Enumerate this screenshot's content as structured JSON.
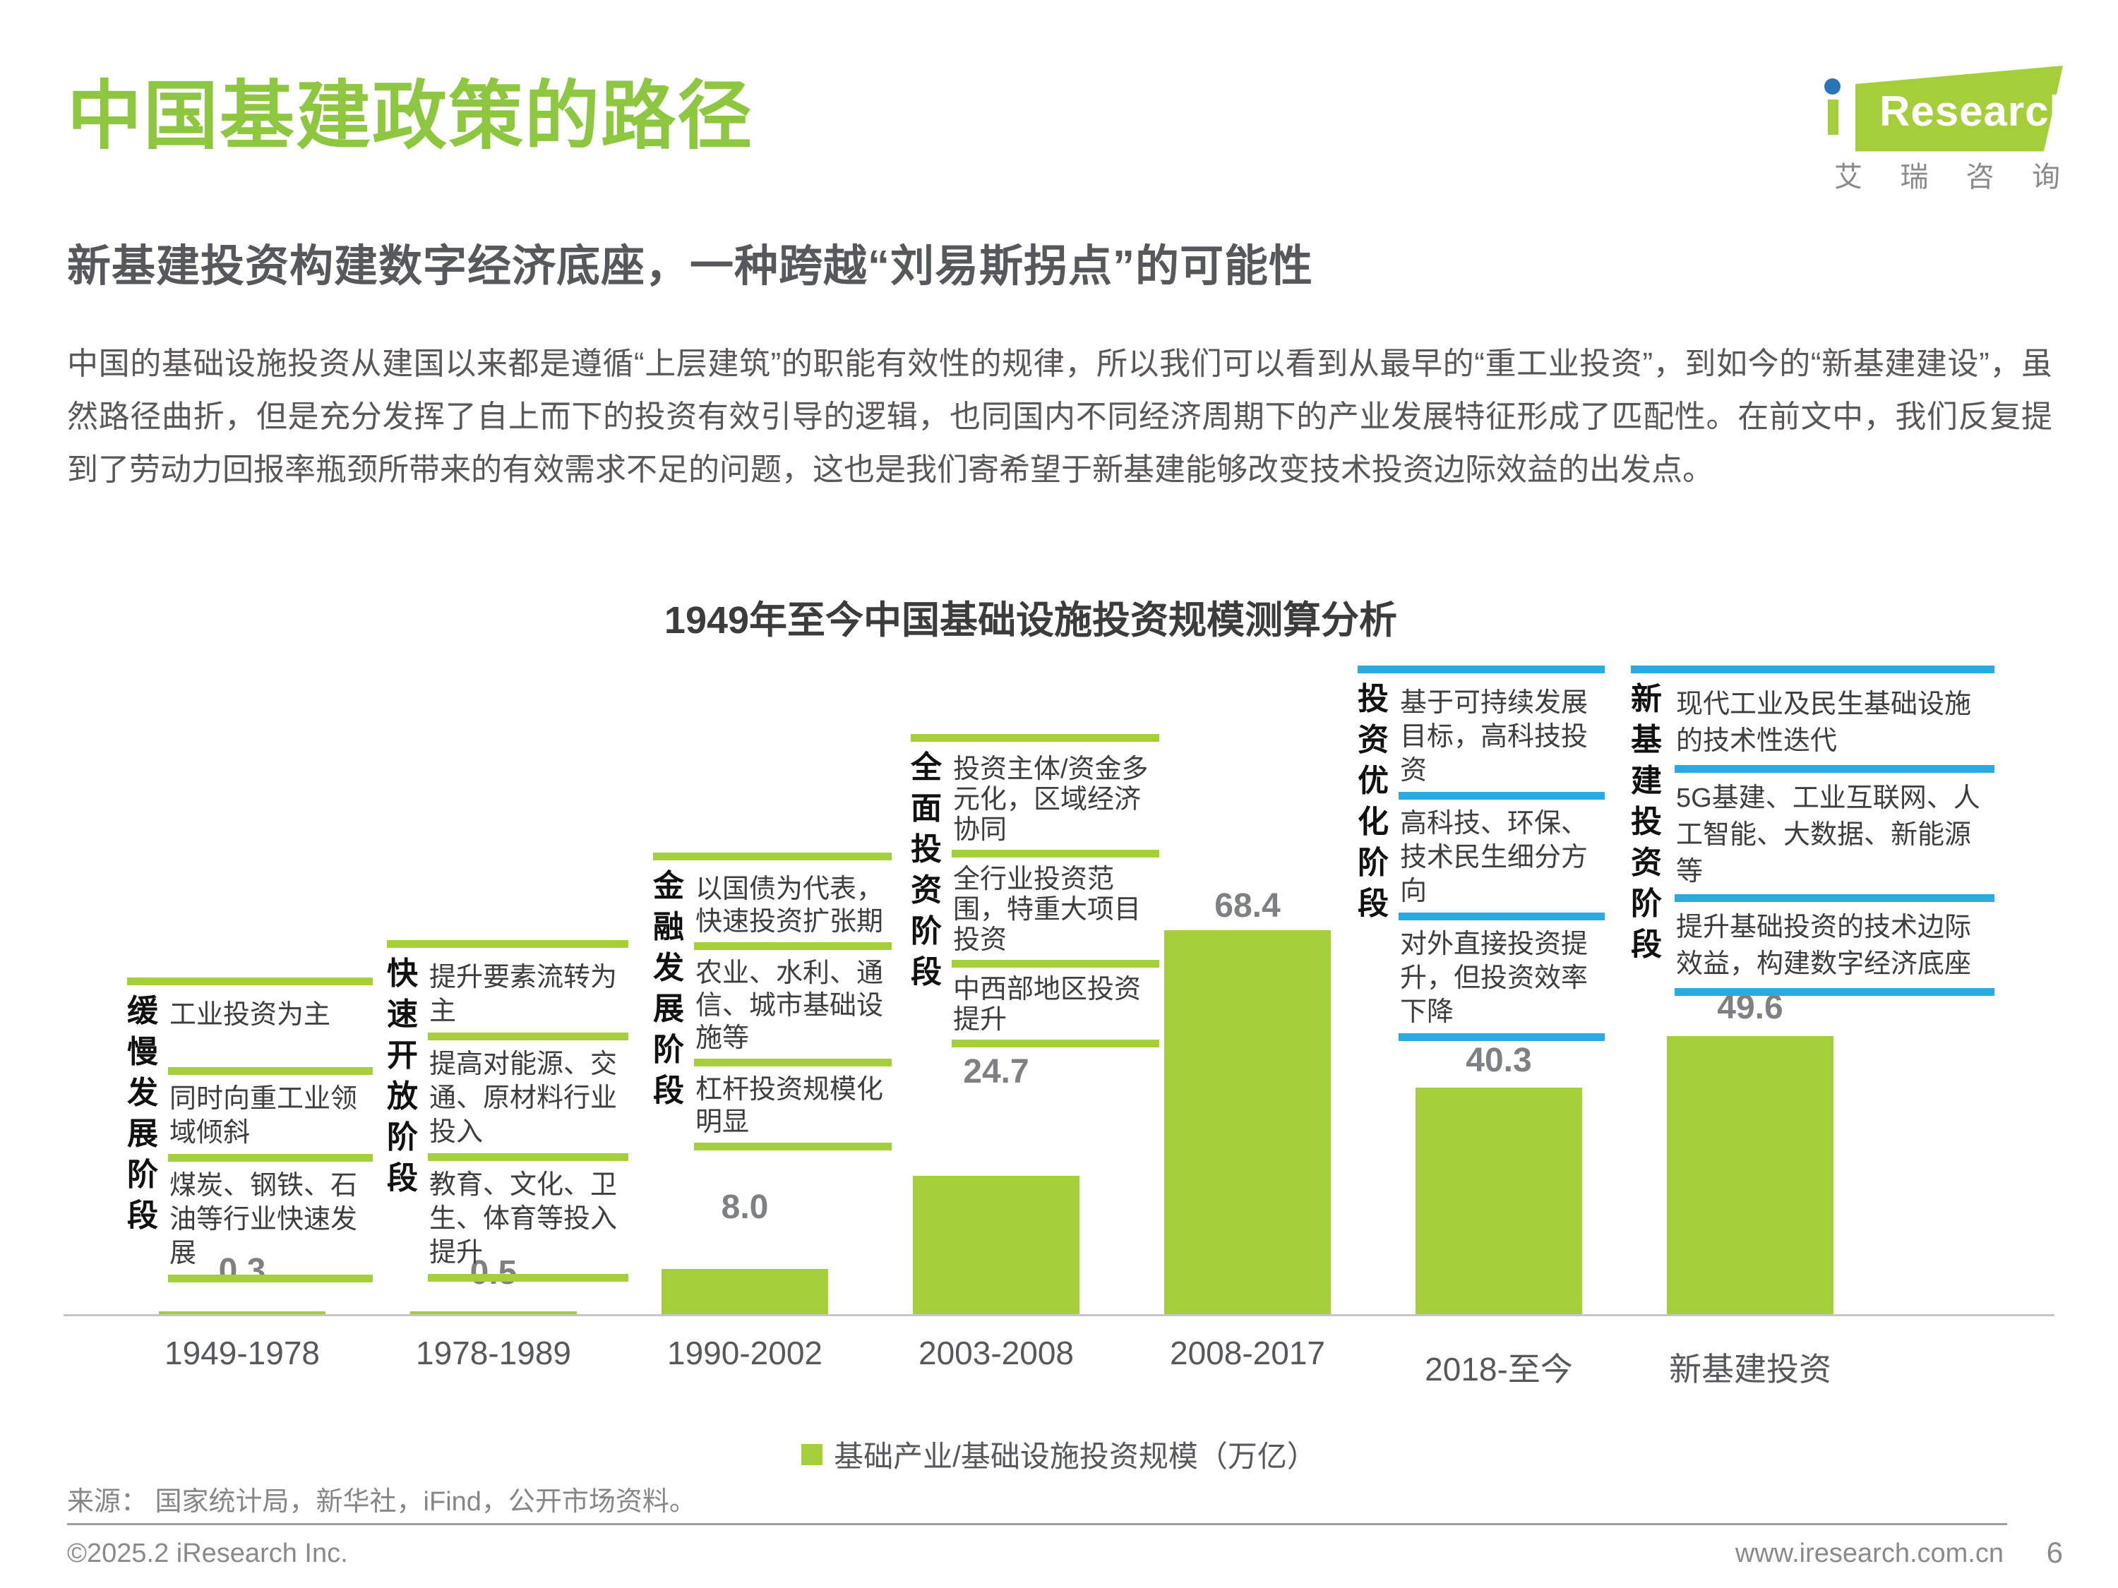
{
  "page": {
    "title": "中国基建政策的路径",
    "subtitle": "新基建投资构建数字经济底座，一种跨越“刘易斯拐点”的可能性",
    "body": "中国的基础设施投资从建国以来都是遵循“上层建筑”的职能有效性的规律，所以我们可以看到从最早的“重工业投资”，到如今的“新基建建设”，虽然路径曲折，但是充分发挥了自上而下的投资有效引导的逻辑，也同国内不同经济周期下的产业发展特征形成了匹配性。在前文中，我们反复提到了劳动力回报率瓶颈所带来的有效需求不足的问题，这也是我们寄希望于新基建能够改变技术投资边际效益的出发点。",
    "logo": {
      "wordmark": "Research",
      "i_letter": "i",
      "caption_chars": [
        "艾",
        "瑞",
        "咨",
        "询"
      ],
      "flag_color": "#A5CE3B",
      "dot_color": "#2C74B9"
    },
    "source": "来源： 国家统计局，新华社，iFind，公开市场资料。",
    "footer": {
      "copyright": "©2025.2 iResearch Inc.",
      "url": "www.iresearch.com.cn",
      "page_number": "6"
    }
  },
  "chart_data": {
    "type": "bar",
    "title": "1949年至今中国基础设施投资规模测算分析",
    "categories": [
      "1949-1978",
      "1978-1989",
      "1990-2002",
      "2003-2008",
      "2008-2017",
      "2018-至今",
      "新基建投资"
    ],
    "values": [
      0.3,
      0.5,
      8.0,
      24.7,
      68.4,
      40.3,
      49.6
    ],
    "ylim": [
      0,
      70
    ],
    "legend": "基础产业/基础设施投资规模（万亿）",
    "bar_color": "#A5CE3B",
    "green_accent": "#A5CE3B",
    "blue_accent": "#29ABE2",
    "grid": false,
    "legend_position": "bottom-center",
    "annotations": [
      {
        "stage": "缓慢发展阶段",
        "accent": "#A5CE3B",
        "items": [
          "工业投资为主",
          "同时向重工业领域倾斜",
          "煤炭、钢铁、石油等行业快速发展"
        ]
      },
      {
        "stage": "快速开放阶段",
        "accent": "#A5CE3B",
        "items": [
          "提升要素流转为主",
          "提高对能源、交通、原材料行业投入",
          "教育、文化、卫生、体育等投入提升"
        ]
      },
      {
        "stage": "金融发展阶段",
        "accent": "#A5CE3B",
        "items": [
          "以国债为代表，快速投资扩张期",
          "农业、水利、通信、城市基础设施等",
          "杠杆投资规模化明显"
        ]
      },
      {
        "stage": "全面投资阶段",
        "accent": "#A5CE3B",
        "items": [
          "投资主体/资金多元化，区域经济协同",
          "全行业投资范围，特重大项目投资",
          "中西部地区投资提升"
        ]
      },
      null,
      {
        "stage": "投资优化阶段",
        "accent": "#29ABE2",
        "items": [
          "基于可持续发展目标，高科技投资",
          "高科技、环保、技术民生细分方向",
          "对外直接投资提升，但投资效率下降"
        ]
      },
      {
        "stage": "新基建投资阶段",
        "accent": "#29ABE2",
        "items": [
          "现代工业及民生基础设施的技术性迭代",
          "5G基建、工业互联网、人工智能、大数据、新能源等",
          "提升基础投资的技术边际效益，构建数字经济底座"
        ]
      }
    ]
  }
}
